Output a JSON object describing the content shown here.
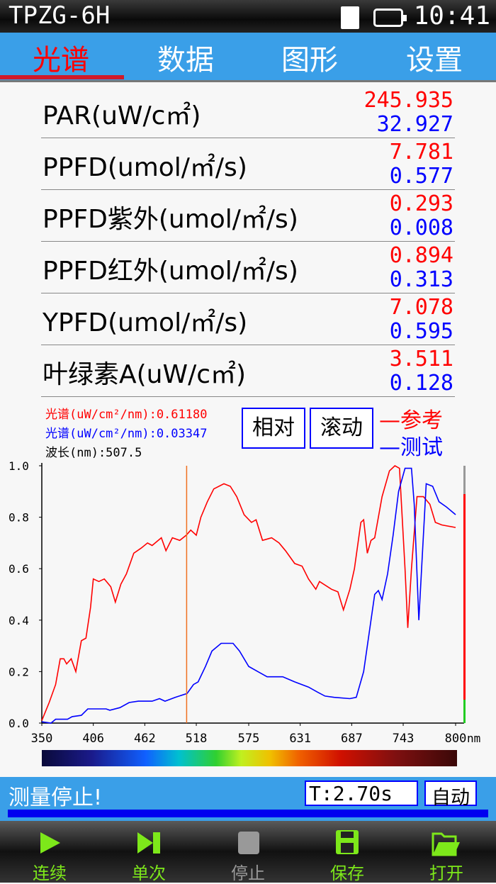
{
  "statusbar": {
    "title": "TPZG-6H",
    "time": "10:41",
    "icons": [
      "sd-card-icon",
      "battery-icon"
    ]
  },
  "tabs": [
    {
      "label": "光谱",
      "active": true
    },
    {
      "label": "数据"
    },
    {
      "label": "图形"
    },
    {
      "label": "设置"
    }
  ],
  "measurements": [
    {
      "label": "PAR(uW/c㎡)",
      "reference": "245.935",
      "test": "32.927"
    },
    {
      "label": "PPFD(umol/㎡/s)",
      "reference": "7.781",
      "test": "0.577"
    },
    {
      "label": "PPFD紫外(umol/㎡/s)",
      "reference": "0.293",
      "test": "0.008"
    },
    {
      "label": "PPFD红外(umol/㎡/s)",
      "reference": "0.894",
      "test": "0.313"
    },
    {
      "label": "YPFD(umol/㎡/s)",
      "reference": "7.078",
      "test": "0.595"
    },
    {
      "label": "叶绿素A(uW/c㎡)",
      "reference": "3.511",
      "test": "0.128"
    }
  ],
  "cursor": {
    "ref_text": "光谱(uW/cm²/nm):0.61180",
    "test_text": "光谱(uW/cm²/nm):0.03347",
    "wavelength_text": "波长(nm):507.5"
  },
  "buttons": {
    "relative": "相对",
    "scroll": "滚动"
  },
  "legend": {
    "reference": "—参考",
    "test": "—测试"
  },
  "colors": {
    "reference": "#ff0000",
    "test": "#0000ff",
    "cursor": "#f07020",
    "accent": "#3a9fe8",
    "toolbar_icon": "#7de81a"
  },
  "chart_data": {
    "type": "line",
    "x_unit": "nm",
    "xlim": [
      350,
      800
    ],
    "ylim": [
      0,
      1.0
    ],
    "x_ticks": [
      "350",
      "406",
      "462",
      "518",
      "575",
      "631",
      "687",
      "743",
      "800"
    ],
    "x_unit_label": "nm",
    "y_ticks": [
      "0.0",
      "0.2",
      "0.4",
      "0.6",
      "0.8",
      "1.0"
    ],
    "cursor_x": 507.5,
    "series": [
      {
        "name": "参考",
        "color": "#ff0000",
        "points": [
          [
            350,
            0.01
          ],
          [
            358,
            0.08
          ],
          [
            365,
            0.15
          ],
          [
            370,
            0.25
          ],
          [
            374,
            0.25
          ],
          [
            377,
            0.23
          ],
          [
            382,
            0.25
          ],
          [
            387,
            0.2
          ],
          [
            393,
            0.32
          ],
          [
            398,
            0.33
          ],
          [
            403,
            0.45
          ],
          [
            406,
            0.56
          ],
          [
            412,
            0.55
          ],
          [
            418,
            0.56
          ],
          [
            425,
            0.53
          ],
          [
            430,
            0.47
          ],
          [
            436,
            0.54
          ],
          [
            442,
            0.58
          ],
          [
            450,
            0.66
          ],
          [
            458,
            0.68
          ],
          [
            465,
            0.7
          ],
          [
            470,
            0.69
          ],
          [
            480,
            0.72
          ],
          [
            485,
            0.67
          ],
          [
            492,
            0.72
          ],
          [
            500,
            0.71
          ],
          [
            507,
            0.73
          ],
          [
            512,
            0.75
          ],
          [
            518,
            0.73
          ],
          [
            523,
            0.8
          ],
          [
            530,
            0.86
          ],
          [
            537,
            0.91
          ],
          [
            548,
            0.93
          ],
          [
            555,
            0.92
          ],
          [
            562,
            0.88
          ],
          [
            570,
            0.81
          ],
          [
            578,
            0.78
          ],
          [
            583,
            0.79
          ],
          [
            590,
            0.71
          ],
          [
            600,
            0.72
          ],
          [
            608,
            0.7
          ],
          [
            615,
            0.67
          ],
          [
            625,
            0.62
          ],
          [
            633,
            0.61
          ],
          [
            640,
            0.56
          ],
          [
            648,
            0.52
          ],
          [
            652,
            0.55
          ],
          [
            665,
            0.52
          ],
          [
            672,
            0.51
          ],
          [
            678,
            0.44
          ],
          [
            685,
            0.52
          ],
          [
            690,
            0.6
          ],
          [
            697,
            0.78
          ],
          [
            700,
            0.79
          ],
          [
            704,
            0.66
          ],
          [
            708,
            0.71
          ],
          [
            712,
            0.72
          ],
          [
            720,
            0.88
          ],
          [
            728,
            0.98
          ],
          [
            734,
            1.0
          ],
          [
            739,
            0.99
          ],
          [
            745,
            0.6
          ],
          [
            748,
            0.37
          ],
          [
            752,
            0.6
          ],
          [
            758,
            0.88
          ],
          [
            765,
            0.88
          ],
          [
            772,
            0.85
          ],
          [
            778,
            0.78
          ],
          [
            785,
            0.77
          ],
          [
            800,
            0.76
          ]
        ]
      },
      {
        "name": "测试",
        "color": "#0000ff",
        "points": [
          [
            350,
            0.005
          ],
          [
            360,
            0.0
          ],
          [
            365,
            0.015
          ],
          [
            378,
            0.015
          ],
          [
            383,
            0.025
          ],
          [
            393,
            0.03
          ],
          [
            400,
            0.055
          ],
          [
            420,
            0.055
          ],
          [
            424,
            0.05
          ],
          [
            435,
            0.06
          ],
          [
            445,
            0.08
          ],
          [
            455,
            0.085
          ],
          [
            470,
            0.085
          ],
          [
            478,
            0.095
          ],
          [
            484,
            0.085
          ],
          [
            495,
            0.1
          ],
          [
            508,
            0.115
          ],
          [
            515,
            0.15
          ],
          [
            520,
            0.16
          ],
          [
            528,
            0.22
          ],
          [
            535,
            0.28
          ],
          [
            545,
            0.31
          ],
          [
            558,
            0.31
          ],
          [
            565,
            0.28
          ],
          [
            575,
            0.22
          ],
          [
            585,
            0.2
          ],
          [
            595,
            0.18
          ],
          [
            612,
            0.18
          ],
          [
            625,
            0.16
          ],
          [
            640,
            0.14
          ],
          [
            650,
            0.12
          ],
          [
            658,
            0.105
          ],
          [
            668,
            0.1
          ],
          [
            685,
            0.095
          ],
          [
            692,
            0.1
          ],
          [
            700,
            0.2
          ],
          [
            708,
            0.4
          ],
          [
            712,
            0.5
          ],
          [
            716,
            0.515
          ],
          [
            720,
            0.48
          ],
          [
            726,
            0.58
          ],
          [
            732,
            0.73
          ],
          [
            738,
            0.9
          ],
          [
            745,
            0.99
          ],
          [
            752,
            0.99
          ],
          [
            755,
            0.85
          ],
          [
            760,
            0.4
          ],
          [
            763,
            0.6
          ],
          [
            768,
            0.93
          ],
          [
            775,
            0.92
          ],
          [
            782,
            0.86
          ],
          [
            790,
            0.84
          ],
          [
            800,
            0.81
          ]
        ]
      }
    ]
  },
  "status": {
    "message": "测量停止!",
    "integration_time": "T:2.70s",
    "mode": "自动"
  },
  "toolbar": [
    {
      "label": "连续",
      "icon": "play-icon",
      "enabled": true
    },
    {
      "label": "单次",
      "icon": "step-icon",
      "enabled": true
    },
    {
      "label": "停止",
      "icon": "stop-icon",
      "enabled": false
    },
    {
      "label": "保存",
      "icon": "save-icon",
      "enabled": true
    },
    {
      "label": "打开",
      "icon": "folder-open-icon",
      "enabled": true
    }
  ]
}
